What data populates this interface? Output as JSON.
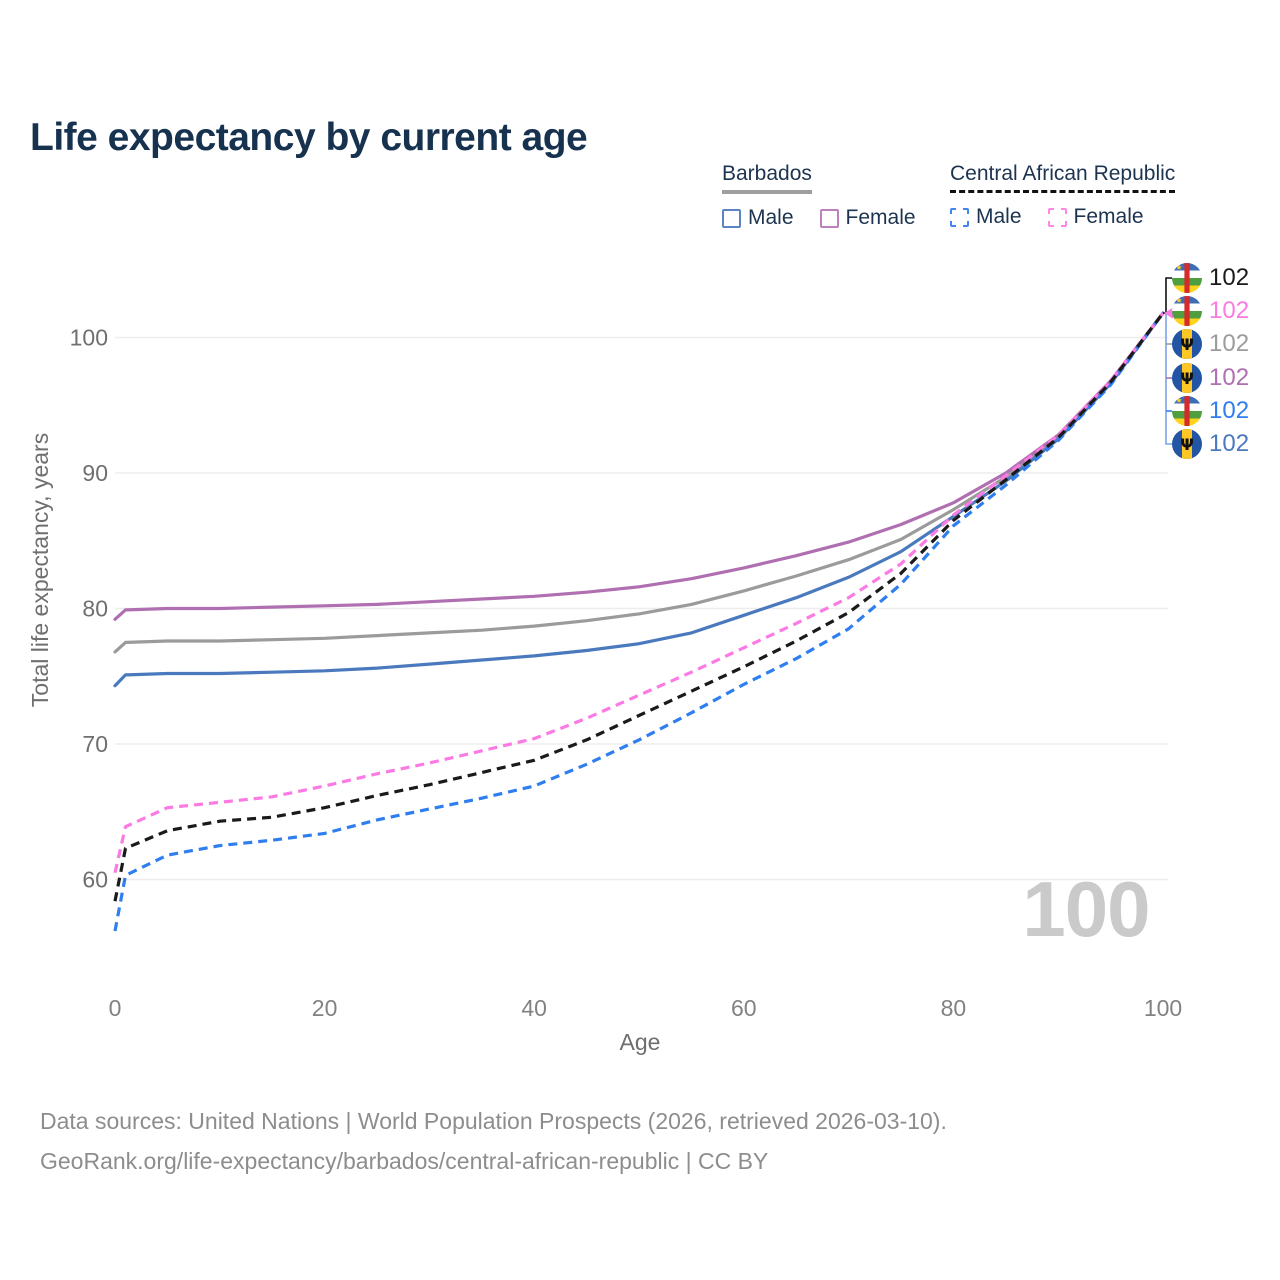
{
  "title": "Life expectancy by current age",
  "legend": {
    "groups": [
      {
        "label": "Barbados",
        "line_style": "solid",
        "underline_color": "#9e9e9e",
        "items": [
          {
            "label": "Male",
            "color": "#5b84c6"
          },
          {
            "label": "Female",
            "color": "#bd80bd"
          }
        ]
      },
      {
        "label": "Central African Republic",
        "line_style": "dashed",
        "underline_color": "#111111",
        "items": [
          {
            "label": "Male",
            "color": "#4285f4"
          },
          {
            "label": "Female",
            "color": "#ff85e6"
          }
        ]
      }
    ]
  },
  "chart_data": {
    "type": "line",
    "title": "Life expectancy by current age",
    "xlabel": "Age",
    "ylabel": "Total life expectancy, years",
    "x_ticks": [
      0,
      20,
      40,
      60,
      80,
      100
    ],
    "y_ticks": [
      100,
      90,
      80,
      70,
      60
    ],
    "xlim": [
      0,
      100
    ],
    "ylim": [
      56,
      104
    ],
    "grid": "horizontal",
    "x": [
      0,
      1,
      5,
      10,
      15,
      20,
      25,
      30,
      35,
      40,
      45,
      50,
      55,
      60,
      65,
      70,
      75,
      80,
      85,
      90,
      95,
      100
    ],
    "series": [
      {
        "name": "Barbados Both sexes",
        "country": "Barbados",
        "sex": "Both",
        "color": "#9b9b9b",
        "dashed": false,
        "values": [
          76.8,
          77.5,
          77.6,
          77.6,
          77.7,
          77.8,
          78.0,
          78.2,
          78.4,
          78.7,
          79.1,
          79.6,
          80.3,
          81.3,
          82.4,
          83.6,
          85.1,
          87.3,
          89.7,
          92.7,
          96.7,
          101.8
        ]
      },
      {
        "name": "Barbados Female",
        "country": "Barbados",
        "sex": "Female",
        "color": "#b06fb1",
        "dashed": false,
        "values": [
          79.2,
          79.9,
          80.0,
          80.0,
          80.1,
          80.2,
          80.3,
          80.5,
          80.7,
          80.9,
          81.2,
          81.6,
          82.2,
          83.0,
          83.9,
          84.9,
          86.2,
          87.8,
          90.0,
          92.8,
          96.8,
          101.8
        ]
      },
      {
        "name": "Barbados Male",
        "country": "Barbados",
        "sex": "Male",
        "color": "#4a79bd",
        "dashed": false,
        "values": [
          74.3,
          75.1,
          75.2,
          75.2,
          75.3,
          75.4,
          75.6,
          75.9,
          76.2,
          76.5,
          76.9,
          77.4,
          78.2,
          79.5,
          80.8,
          82.3,
          84.2,
          86.8,
          89.4,
          92.5,
          96.6,
          101.8
        ]
      },
      {
        "name": "Central African Republic Male",
        "country": "Central African Republic",
        "sex": "Male",
        "color": "#2f7ef0",
        "dashed": true,
        "values": [
          56.2,
          60.3,
          61.8,
          62.5,
          62.9,
          63.4,
          64.4,
          65.2,
          66.0,
          66.9,
          68.5,
          70.3,
          72.3,
          74.4,
          76.3,
          78.5,
          81.8,
          86.1,
          89.1,
          92.4,
          96.5,
          101.8
        ]
      },
      {
        "name": "Central African Republic Female",
        "country": "Central African Republic",
        "sex": "Female",
        "color": "#fb7ae3",
        "dashed": true,
        "values": [
          60.5,
          63.9,
          65.3,
          65.7,
          66.1,
          66.9,
          67.8,
          68.6,
          69.5,
          70.4,
          71.9,
          73.6,
          75.3,
          77.1,
          78.9,
          80.8,
          83.3,
          86.9,
          89.8,
          92.8,
          96.8,
          101.8
        ]
      },
      {
        "name": "Central African Republic Both sexes",
        "country": "Central African Republic",
        "sex": "Both",
        "color": "#1a1a1a",
        "dashed": true,
        "values": [
          58.4,
          62.3,
          63.6,
          64.3,
          64.6,
          65.3,
          66.2,
          67.0,
          67.9,
          68.8,
          70.3,
          72.1,
          73.9,
          75.7,
          77.6,
          79.7,
          82.6,
          86.5,
          89.5,
          92.6,
          96.7,
          101.8
        ]
      }
    ],
    "end_labels": [
      {
        "flag": "caf",
        "value": "102",
        "color": "#1a1a1a"
      },
      {
        "flag": "caf",
        "value": "102",
        "color": "#fb7ae3"
      },
      {
        "flag": "brb",
        "value": "102",
        "color": "#9b9b9b"
      },
      {
        "flag": "brb",
        "value": "102",
        "color": "#b06fb1"
      },
      {
        "flag": "caf",
        "value": "102",
        "color": "#2f7ef0"
      },
      {
        "flag": "brb",
        "value": "102",
        "color": "#4a79bd"
      }
    ],
    "age_cursor_label": "100",
    "legend_position": "top-right"
  },
  "footer": {
    "line1": "Data sources: United Nations | World Population Prospects (2026, retrieved 2026-03-10).",
    "line2": "GeoRank.org/life-expectancy/barbados/central-african-republic | CC BY"
  }
}
